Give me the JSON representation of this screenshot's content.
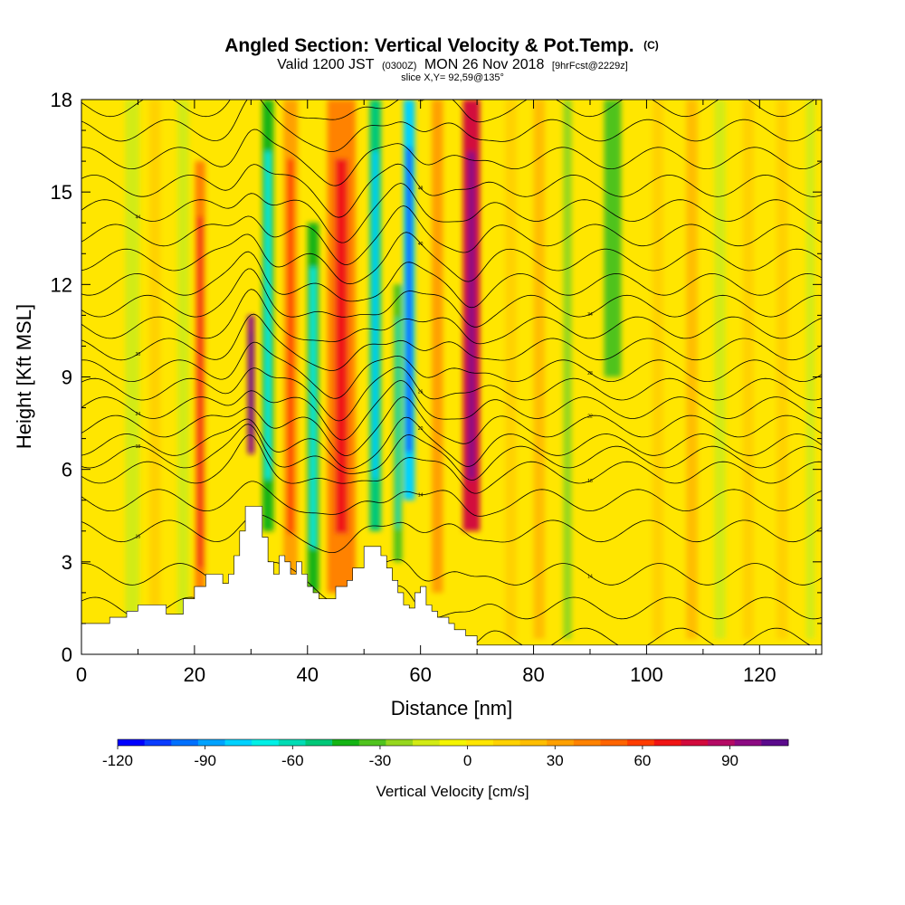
{
  "chart_data": {
    "type": "heatmap",
    "title": "Angled Section: Vertical Velocity & Pot.Temp.",
    "title_unit": "(C)",
    "subtitle": {
      "valid_prefix": "Valid 1200 JST",
      "utc": "(0300Z)",
      "valid_date": "MON 26 Nov 2018",
      "forecast": "[9hrFcst@2229z]"
    },
    "slice": "slice X,Y= 92,59@135°",
    "xlabel": "Distance [nm]",
    "ylabel": "Height [Kft MSL]",
    "xlim": [
      0,
      131
    ],
    "ylim": [
      0,
      18
    ],
    "xticks": [
      "0",
      "20",
      "40",
      "60",
      "80",
      "100",
      "120"
    ],
    "yticks": [
      "0",
      "3",
      "6",
      "9",
      "12",
      "15",
      "18"
    ],
    "colorbar": {
      "label": "Vertical Velocity [cm/s]",
      "range": [
        -120,
        110
      ],
      "tick_labels": [
        "-120",
        "-90",
        "-60",
        "-30",
        "0",
        "30",
        "60",
        "90"
      ],
      "tick_values": [
        -120,
        -90,
        -60,
        -30,
        0,
        30,
        60,
        90
      ],
      "colors": [
        "#0000ff",
        "#0a3cff",
        "#0070ff",
        "#00a2ff",
        "#00d2ff",
        "#00f0e6",
        "#00dcb4",
        "#00c878",
        "#14b414",
        "#50c31e",
        "#96d71e",
        "#d2eb14",
        "#f5f500",
        "#ffe600",
        "#ffd200",
        "#ffbe00",
        "#ffa000",
        "#ff8200",
        "#ff6400",
        "#ff3c00",
        "#f01414",
        "#d20a3c",
        "#b40a64",
        "#8c0a82",
        "#5a0a8c"
      ]
    },
    "velocity_features": [
      {
        "x": 5,
        "w": 2.5,
        "top": 18,
        "bottom": 1,
        "vel": 8
      },
      {
        "x": 9,
        "w": 2.5,
        "top": 18,
        "bottom": 1,
        "vel": -12
      },
      {
        "x": 13,
        "w": 2,
        "top": 18,
        "bottom": 1,
        "vel": 12
      },
      {
        "x": 18,
        "w": 2,
        "top": 18,
        "bottom": 1,
        "vel": -14
      },
      {
        "x": 21,
        "w": 1.8,
        "top": 16,
        "bottom": 1,
        "vel": 40
      },
      {
        "x": 30,
        "w": 1.2,
        "top": 11,
        "bottom": 6.5,
        "vel": 100
      },
      {
        "x": 33,
        "w": 2,
        "top": 18,
        "bottom": 4,
        "vel": -45
      },
      {
        "x": 37,
        "w": 2.5,
        "top": 18,
        "bottom": 2,
        "vel": 35
      },
      {
        "x": 41,
        "w": 2,
        "top": 14,
        "bottom": 2,
        "vel": -40
      },
      {
        "x": 46,
        "w": 5,
        "top": 18,
        "bottom": 2,
        "vel": 40
      },
      {
        "x": 52,
        "w": 2,
        "top": 18,
        "bottom": 4,
        "vel": -55
      },
      {
        "x": 58,
        "w": 2,
        "top": 18,
        "bottom": 5,
        "vel": -80
      },
      {
        "x": 56,
        "w": 1.5,
        "top": 12,
        "bottom": 3,
        "vel": -35
      },
      {
        "x": 63,
        "w": 2,
        "top": 18,
        "bottom": 2,
        "vel": 30
      },
      {
        "x": 69,
        "w": 3,
        "top": 18,
        "bottom": 4,
        "vel": 75
      },
      {
        "x": 76,
        "w": 2,
        "top": 18,
        "bottom": 0.5,
        "vel": 15
      },
      {
        "x": 81,
        "w": 2,
        "top": 18,
        "bottom": 0.5,
        "vel": 20
      },
      {
        "x": 86,
        "w": 1.5,
        "top": 18,
        "bottom": 0.5,
        "vel": -20
      },
      {
        "x": 94,
        "w": 3,
        "top": 18,
        "bottom": 9,
        "vel": -30
      },
      {
        "x": 102,
        "w": 2,
        "top": 18,
        "bottom": 0.5,
        "vel": 12
      },
      {
        "x": 108,
        "w": 2,
        "top": 18,
        "bottom": 0.5,
        "vel": 18
      },
      {
        "x": 113,
        "w": 2,
        "top": 18,
        "bottom": 0.5,
        "vel": -12
      },
      {
        "x": 118,
        "w": 2,
        "top": 18,
        "bottom": 0.5,
        "vel": 15
      },
      {
        "x": 124,
        "w": 2,
        "top": 18,
        "bottom": 0.5,
        "vel": 12
      },
      {
        "x": 129,
        "w": 1.5,
        "top": 18,
        "bottom": 0.5,
        "vel": -10
      }
    ],
    "terrain": [
      [
        0,
        1.0
      ],
      [
        4,
        1.0
      ],
      [
        5,
        1.2
      ],
      [
        8,
        1.4
      ],
      [
        10,
        1.6
      ],
      [
        14,
        1.6
      ],
      [
        15,
        1.3
      ],
      [
        17,
        1.3
      ],
      [
        18,
        1.8
      ],
      [
        20,
        2.2
      ],
      [
        22,
        2.6
      ],
      [
        23,
        2.6
      ],
      [
        25,
        2.3
      ],
      [
        26,
        2.6
      ],
      [
        27,
        3.2
      ],
      [
        28,
        4.0
      ],
      [
        29,
        4.8
      ],
      [
        31,
        4.8
      ],
      [
        32,
        3.8
      ],
      [
        33,
        3.0
      ],
      [
        34,
        2.6
      ],
      [
        35,
        3.2
      ],
      [
        36,
        3.0
      ],
      [
        37,
        2.6
      ],
      [
        38,
        3.0
      ],
      [
        39,
        2.6
      ],
      [
        40,
        2.2
      ],
      [
        41,
        2.0
      ],
      [
        42,
        1.8
      ],
      [
        44,
        1.8
      ],
      [
        45,
        2.2
      ],
      [
        47,
        2.4
      ],
      [
        48,
        2.8
      ],
      [
        50,
        3.5
      ],
      [
        52,
        3.5
      ],
      [
        53,
        3.2
      ],
      [
        54,
        2.8
      ],
      [
        55,
        2.4
      ],
      [
        56,
        2.0
      ],
      [
        57,
        1.6
      ],
      [
        58,
        1.5
      ],
      [
        59,
        2.0
      ],
      [
        60,
        2.2
      ],
      [
        61,
        1.6
      ],
      [
        62,
        1.4
      ],
      [
        63,
        1.2
      ],
      [
        65,
        1.0
      ],
      [
        66,
        0.8
      ],
      [
        68,
        0.6
      ],
      [
        70,
        0.3
      ],
      [
        72,
        0.3
      ],
      [
        131,
        0.3
      ]
    ],
    "theta_levels": [
      {
        "y": 0.5,
        "label": ""
      },
      {
        "y": 1.5,
        "label": ""
      },
      {
        "y": 2.6,
        "label": "14"
      },
      {
        "y": 4.0,
        "label": "16"
      },
      {
        "y": 5.0,
        "label": "14"
      },
      {
        "y": 5.9,
        "label": "18"
      },
      {
        "y": 6.4,
        "label": "18"
      },
      {
        "y": 6.8,
        "label": "20"
      },
      {
        "y": 7.4,
        "label": "22"
      },
      {
        "y": 8.0,
        "label": "24"
      },
      {
        "y": 8.6,
        "label": "26"
      },
      {
        "y": 9.2,
        "label": "28"
      },
      {
        "y": 9.9,
        "label": "30"
      },
      {
        "y": 10.6,
        "label": ""
      },
      {
        "y": 11.3,
        "label": "34"
      },
      {
        "y": 12.0,
        "label": ""
      },
      {
        "y": 12.8,
        "label": "40"
      },
      {
        "y": 13.6,
        "label": ""
      },
      {
        "y": 14.4,
        "label": "44"
      },
      {
        "y": 15.2,
        "label": "48"
      },
      {
        "y": 16.1,
        "label": ""
      },
      {
        "y": 17.0,
        "label": ""
      },
      {
        "y": 17.8,
        "label": "56"
      }
    ]
  }
}
